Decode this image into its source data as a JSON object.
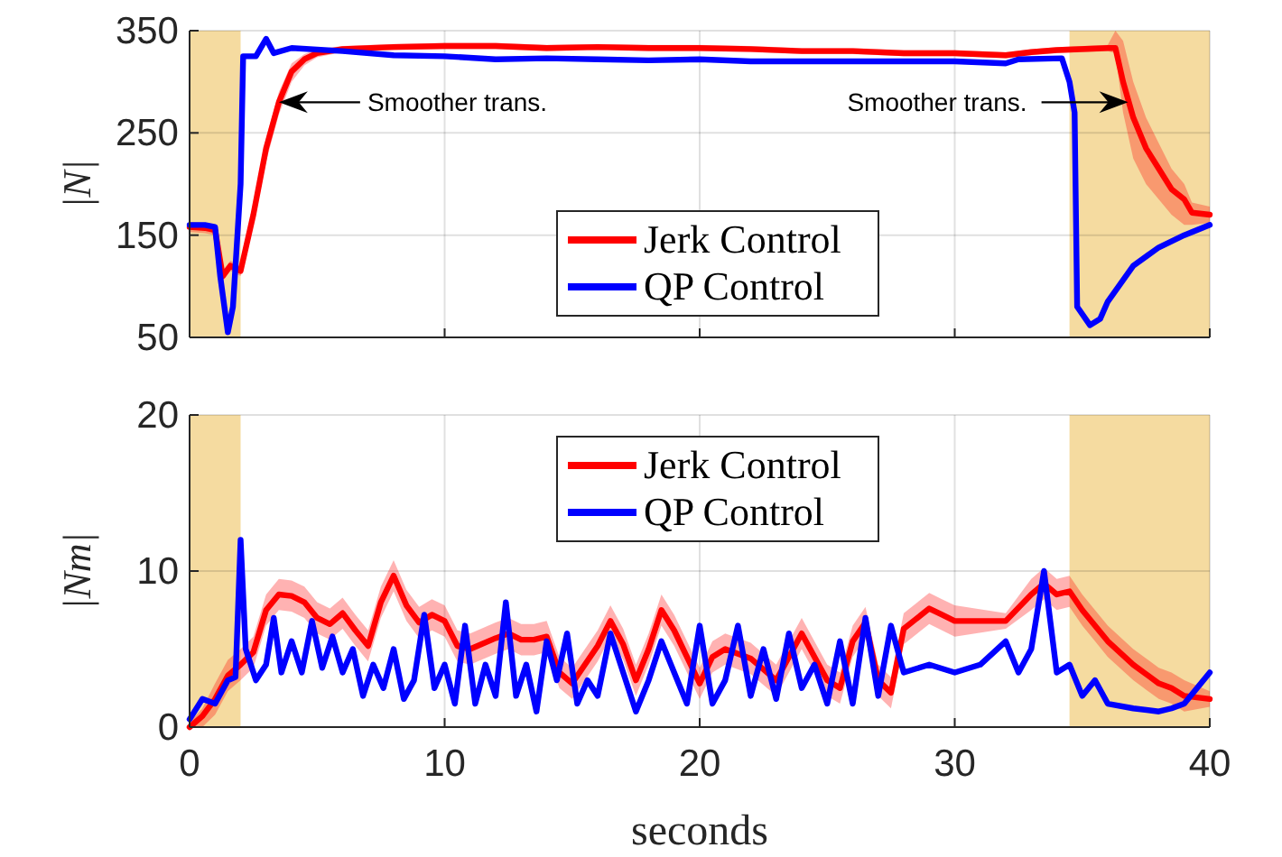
{
  "chart_data": [
    {
      "type": "line",
      "ylabel": "|N|",
      "xlim": [
        0,
        40
      ],
      "xticks": [
        0,
        10,
        20,
        30,
        40
      ],
      "ylim": [
        50,
        350
      ],
      "yticks": [
        50,
        150,
        250,
        350
      ],
      "grid": true,
      "legend": "bottom",
      "tick_labels": "y",
      "bands": [
        {
          "axis": "x",
          "from": 0,
          "to": 2,
          "color": "#f5dba0"
        },
        {
          "axis": "x",
          "from": 34.5,
          "to": 40,
          "color": "#f5dba0"
        }
      ],
      "annotations": [
        {
          "text": "Smoother trans.",
          "x": 3.5,
          "y": 280
        },
        {
          "text": "Smoother trans.",
          "x": 36.8,
          "y": 280
        }
      ],
      "series": [
        {
          "name": "Jerk Control",
          "color": "#ff0000",
          "x": [
            0,
            0.6,
            1,
            1.3,
            1.6,
            2,
            2.5,
            3,
            3.5,
            4,
            4.5,
            5,
            6,
            8,
            10,
            12,
            14,
            16,
            18,
            20,
            22,
            24,
            26,
            28,
            30,
            32,
            33,
            34,
            36,
            36.3,
            36.6,
            37,
            37.5,
            38,
            38.5,
            39,
            39.3,
            40
          ],
          "values": [
            158,
            157,
            155,
            110,
            120,
            115,
            170,
            235,
            280,
            310,
            322,
            328,
            332,
            334,
            335,
            335,
            333,
            334,
            333,
            333,
            332,
            330,
            330,
            328,
            328,
            326,
            329,
            331,
            333,
            333,
            300,
            265,
            235,
            215,
            195,
            185,
            172,
            170
          ],
          "lower": [
            153,
            152,
            150,
            105,
            115,
            110,
            160,
            222,
            268,
            300,
            316,
            324,
            329,
            331,
            332,
            332,
            330,
            331,
            330,
            330,
            329,
            327,
            327,
            325,
            325,
            323,
            326,
            328,
            330,
            328,
            270,
            225,
            200,
            185,
            170,
            160,
            160,
            162
          ],
          "upper": [
            163,
            162,
            160,
            115,
            125,
            120,
            180,
            245,
            290,
            318,
            327,
            332,
            335,
            337,
            338,
            338,
            336,
            337,
            336,
            336,
            335,
            333,
            333,
            331,
            331,
            329,
            332,
            334,
            336,
            350,
            340,
            300,
            265,
            240,
            215,
            200,
            182,
            178
          ]
        },
        {
          "name": "QP Control",
          "color": "#0000ff",
          "x": [
            0,
            0.6,
            1,
            1.2,
            1.5,
            1.7,
            2,
            2.1,
            2.6,
            3,
            3.3,
            4,
            6,
            8,
            10,
            12,
            14,
            16,
            18,
            20,
            22,
            24,
            26,
            28,
            30,
            32,
            32.5,
            34.2,
            34.5,
            34.7,
            34.8,
            35.3,
            35.7,
            36,
            37,
            38,
            39,
            40
          ],
          "values": [
            160,
            160,
            158,
            110,
            55,
            80,
            200,
            325,
            325,
            342,
            328,
            333,
            330,
            326,
            325,
            322,
            323,
            322,
            321,
            322,
            320,
            320,
            320,
            320,
            320,
            318,
            322,
            323,
            300,
            270,
            80,
            62,
            68,
            85,
            120,
            138,
            150,
            160
          ]
        }
      ]
    },
    {
      "type": "line",
      "ylabel": "|Nm|",
      "xlabel": "seconds",
      "xlim": [
        0,
        40
      ],
      "xticks": [
        0,
        10,
        20,
        30,
        40
      ],
      "ylim": [
        0,
        20
      ],
      "yticks": [
        0,
        10,
        20
      ],
      "grid": true,
      "legend": "top",
      "bands": [
        {
          "axis": "x",
          "from": 0,
          "to": 2,
          "color": "#f5dba0"
        },
        {
          "axis": "x",
          "from": 34.5,
          "to": 40,
          "color": "#f5dba0"
        }
      ],
      "series": [
        {
          "name": "Jerk Control",
          "color": "#ff0000",
          "x": [
            0,
            0.5,
            1,
            1.5,
            2,
            2.5,
            3,
            3.5,
            4,
            4.5,
            5,
            5.5,
            6,
            6.5,
            7,
            7.5,
            8,
            8.5,
            9,
            9.5,
            10,
            10.5,
            11,
            12,
            12.5,
            13,
            13.5,
            14,
            14.5,
            15,
            15.5,
            16,
            16.5,
            17,
            17.5,
            18,
            18.5,
            19,
            20,
            20.5,
            21,
            22,
            23,
            24,
            25,
            25.5,
            26,
            26.5,
            27,
            27.5,
            28,
            29,
            29.5,
            30,
            32,
            33,
            33.5,
            34,
            34.5,
            35,
            35.5,
            36,
            37,
            38,
            38.5,
            39,
            40
          ],
          "values": [
            0,
            0.7,
            1.8,
            3.3,
            4,
            4.8,
            7.5,
            8.5,
            8.4,
            8,
            7,
            6.6,
            7.3,
            6.2,
            5.2,
            8,
            9.7,
            7.8,
            6.7,
            7.2,
            6.8,
            5.2,
            5,
            5.7,
            6,
            5.6,
            5.6,
            5.8,
            3.5,
            2.8,
            4,
            5.2,
            6.8,
            5.3,
            3,
            5,
            7.5,
            6.2,
            2.8,
            4.5,
            5,
            4.4,
            3,
            6,
            3,
            2.5,
            5.5,
            6.7,
            3,
            2.2,
            6.3,
            7.6,
            7.2,
            6.8,
            6.8,
            8.5,
            9.2,
            8.5,
            8.7,
            7.5,
            6.5,
            5.5,
            4,
            2.8,
            2.5,
            2,
            1.8
          ],
          "lower": [
            0,
            0,
            0.8,
            2.3,
            3,
            3.8,
            6.5,
            7.5,
            7.4,
            7,
            6,
            5.6,
            6.3,
            5.2,
            4.2,
            7,
            8.7,
            6.8,
            5.7,
            6.2,
            5.8,
            4.2,
            4,
            4.7,
            5,
            4.6,
            4.6,
            4.8,
            2.5,
            1.8,
            3,
            4.2,
            5.8,
            4.3,
            2,
            4,
            6.5,
            5.2,
            1.8,
            3.5,
            4,
            3.4,
            2,
            5,
            2,
            1.5,
            4.5,
            5.7,
            2,
            1.2,
            5.3,
            6.6,
            6.2,
            5.8,
            6.3,
            7.5,
            8.2,
            7.5,
            7.7,
            6.5,
            5.5,
            4.5,
            3,
            1.8,
            1.5,
            1,
            1.3
          ],
          "upper": [
            0.3,
            1.2,
            2.8,
            4.3,
            5,
            5.8,
            8.5,
            9.5,
            9.4,
            9,
            8,
            7.6,
            8.3,
            7.2,
            6.2,
            9,
            10.7,
            8.8,
            7.7,
            8.2,
            7.8,
            6.2,
            6,
            6.7,
            7,
            6.6,
            6.6,
            6.8,
            4.5,
            3.8,
            5,
            6.2,
            7.8,
            6.3,
            4,
            6,
            8.5,
            7.2,
            3.8,
            5.5,
            6,
            5.4,
            4,
            7,
            4,
            3.5,
            6.5,
            7.7,
            4,
            3.2,
            7.3,
            8.6,
            8.2,
            7.8,
            7.3,
            9.5,
            10.2,
            9.5,
            9.7,
            8.5,
            7.5,
            6.5,
            5,
            3.8,
            3.5,
            3,
            2.3
          ]
        },
        {
          "name": "QP Control",
          "color": "#0000ff",
          "x": [
            0,
            0.5,
            1,
            1.5,
            1.8,
            2,
            2.2,
            2.6,
            3,
            3.3,
            3.6,
            4,
            4.4,
            4.8,
            5.2,
            5.6,
            6,
            6.4,
            6.8,
            7.2,
            7.6,
            8,
            8.4,
            8.8,
            9.2,
            9.6,
            10,
            10.4,
            10.8,
            11.2,
            11.6,
            12,
            12.4,
            12.8,
            13.2,
            13.6,
            14,
            14.4,
            14.8,
            15.2,
            15.6,
            16,
            16.5,
            17,
            17.5,
            18,
            18.5,
            19,
            19.5,
            20,
            20.5,
            21,
            21.5,
            22,
            22.5,
            23,
            23.5,
            24,
            24.5,
            25,
            25.5,
            26,
            26.5,
            27,
            27.5,
            28,
            29,
            30,
            31,
            32,
            32.5,
            33,
            33.5,
            34,
            34.5,
            35,
            35.5,
            36,
            37,
            38,
            38.5,
            39,
            39.5,
            40
          ],
          "values": [
            0.5,
            1.8,
            1.5,
            3,
            3.2,
            12,
            5,
            3,
            4,
            7,
            3.5,
            5.5,
            3.5,
            6.8,
            3.8,
            5.8,
            3.5,
            5,
            2,
            4,
            2.5,
            5,
            1.8,
            3,
            7.2,
            2.5,
            4,
            1.5,
            6.5,
            1.5,
            4,
            2,
            8,
            2,
            4,
            1,
            5.5,
            3,
            6,
            1.5,
            3,
            2,
            6,
            3.5,
            1,
            3,
            5.5,
            3.5,
            1.5,
            6.5,
            1.5,
            3,
            6.5,
            2,
            5,
            1.8,
            6,
            2.5,
            4,
            1.5,
            5.5,
            1.5,
            7,
            2,
            6.5,
            3.5,
            4,
            3.5,
            4,
            5.5,
            3.5,
            5,
            10,
            3.5,
            4,
            2,
            3,
            1.5,
            1.2,
            1,
            1.2,
            1.5,
            2.5,
            3.5
          ]
        }
      ]
    }
  ]
}
